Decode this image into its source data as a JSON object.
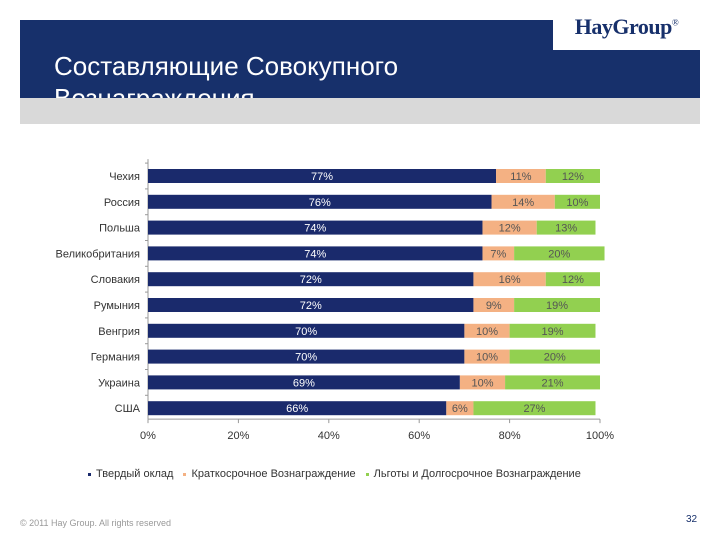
{
  "header": {
    "title_line1": "Составляющие Совокупного",
    "title_line2": "Вознаграждения",
    "logo_text": "HayGroup",
    "logo_mark": "®"
  },
  "colors": {
    "header": "#17306b",
    "base_salary": "#1a2a6c",
    "short_term": "#f4b183",
    "benefits_long_term": "#92d050"
  },
  "chart_data": {
    "type": "bar",
    "orientation": "horizontal",
    "stacked": true,
    "categories": [
      "Чехия",
      "Россия",
      "Польша",
      "Великобритания",
      "Словакия",
      "Румыния",
      "Венгрия",
      "Германия",
      "Украина",
      "США"
    ],
    "series": [
      {
        "name": "Твердый оклад",
        "values": [
          77,
          76,
          74,
          74,
          72,
          72,
          70,
          70,
          69,
          66
        ],
        "labels": [
          "77%",
          "76%",
          "74%",
          "74%",
          "72%",
          "72%",
          "70%",
          "70%",
          "69%",
          "66%"
        ]
      },
      {
        "name": "Краткосрочное Вознаграждение",
        "values": [
          11,
          14,
          12,
          7,
          16,
          9,
          10,
          10,
          10,
          6
        ],
        "labels": [
          "11%",
          "14%",
          "12%",
          "7%",
          "16%",
          "9%",
          "10%",
          "10%",
          "10%",
          "6%"
        ]
      },
      {
        "name": "Льготы и Долгосрочное Вознаграждение",
        "values": [
          12,
          10,
          13,
          20,
          12,
          19,
          19,
          20,
          21,
          27
        ],
        "labels": [
          "12%",
          "10%",
          "13%",
          "20%",
          "12%",
          "19%",
          "19%",
          "20%",
          "21%",
          "27%"
        ]
      }
    ],
    "x_ticks": [
      "0%",
      "20%",
      "40%",
      "60%",
      "80%",
      "100%"
    ],
    "xlim": [
      0,
      100
    ],
    "grid": false,
    "legend_position": "bottom"
  },
  "legend": {
    "items": [
      {
        "label": "Твердый оклад"
      },
      {
        "label": "Краткосрочное Вознаграждение"
      },
      {
        "label": "Льготы и Долгосрочное Вознаграждение"
      }
    ]
  },
  "footer": {
    "copyright": "© 2011 Hay Group. All rights reserved",
    "page_number": "32"
  }
}
